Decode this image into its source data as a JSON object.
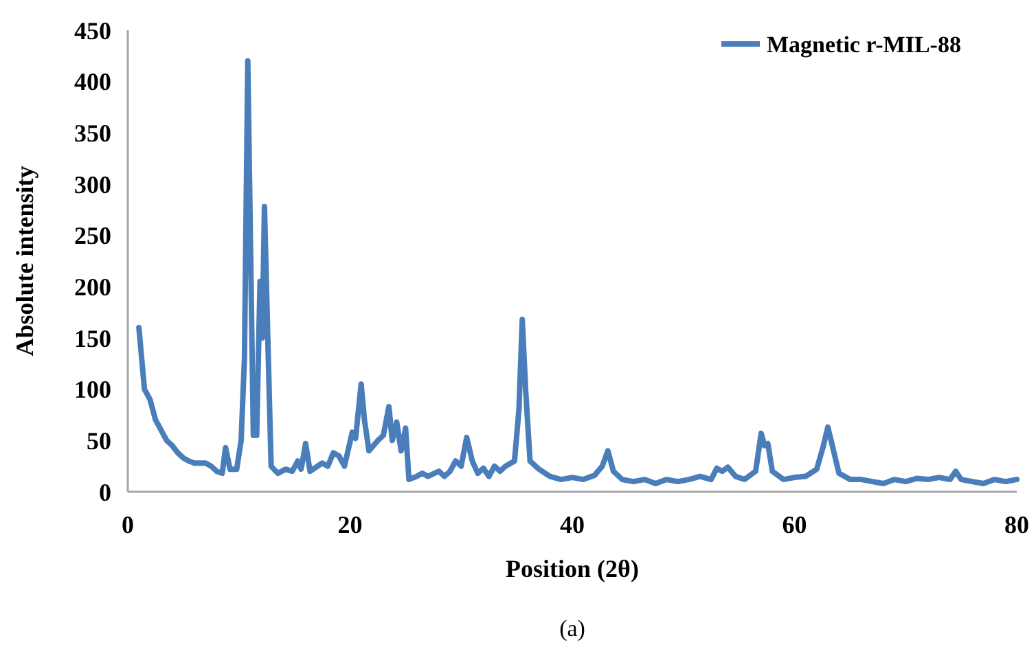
{
  "chart_data": {
    "type": "line",
    "xlabel": "Position (2θ)",
    "ylabel": "Absolute intensity",
    "annotations": [
      "(a)"
    ],
    "xlim": [
      0,
      80
    ],
    "xticks": [
      0,
      20,
      40,
      60,
      80
    ],
    "ylim": [
      0,
      450
    ],
    "yticks": [
      0,
      50,
      100,
      150,
      200,
      250,
      300,
      350,
      400,
      450
    ],
    "legend": "top right",
    "grid": false,
    "marker": "none",
    "series": [
      {
        "name": "Magnetic r-MIL-88",
        "color": "#4a7ebb",
        "x": [
          1,
          1.5,
          2,
          2.5,
          3,
          3.5,
          4,
          4.5,
          5,
          5.5,
          6,
          7,
          7.5,
          8,
          8.5,
          8.8,
          9.2,
          9.8,
          10.2,
          10.5,
          10.8,
          11.1,
          11.3,
          11.6,
          11.9,
          12.1,
          12.3,
          12.6,
          12.9,
          13.5,
          14.2,
          14.8,
          15.3,
          15.6,
          16,
          16.4,
          17.5,
          18,
          18.5,
          19,
          19.5,
          20.2,
          20.5,
          21,
          21.3,
          21.7,
          22.5,
          23,
          23.5,
          23.8,
          24.2,
          24.6,
          25,
          25.3,
          26,
          26.5,
          27,
          28,
          28.5,
          29,
          29.5,
          30,
          30.5,
          31,
          31.5,
          32,
          32.5,
          33,
          33.5,
          34,
          34.8,
          35.2,
          35.5,
          35.8,
          36.2,
          37,
          38,
          39,
          40,
          41,
          42,
          42.7,
          43.2,
          43.7,
          44.5,
          45.5,
          46.5,
          47.5,
          48.5,
          49.5,
          50.5,
          51.5,
          52.5,
          53,
          53.5,
          54,
          54.7,
          55.5,
          56.5,
          57,
          57.3,
          57.6,
          58,
          59,
          60,
          61,
          62,
          62.6,
          63,
          63.4,
          64,
          65,
          66,
          67,
          68,
          69,
          70,
          71,
          72,
          73,
          74,
          74.5,
          75,
          76,
          77,
          78,
          79,
          80
        ],
        "values": [
          160,
          100,
          90,
          70,
          60,
          50,
          45,
          38,
          33,
          30,
          28,
          28,
          25,
          20,
          18,
          43,
          22,
          22,
          50,
          130,
          420,
          200,
          55,
          55,
          205,
          150,
          278,
          150,
          25,
          18,
          22,
          20,
          30,
          22,
          47,
          20,
          28,
          25,
          38,
          35,
          25,
          58,
          52,
          105,
          70,
          40,
          50,
          55,
          83,
          50,
          68,
          40,
          62,
          12,
          15,
          18,
          15,
          20,
          15,
          20,
          30,
          25,
          53,
          30,
          18,
          23,
          15,
          25,
          20,
          25,
          30,
          80,
          168,
          100,
          30,
          22,
          15,
          12,
          14,
          12,
          16,
          25,
          40,
          20,
          12,
          10,
          12,
          8,
          12,
          10,
          12,
          15,
          12,
          23,
          20,
          24,
          15,
          12,
          20,
          57,
          45,
          47,
          20,
          12,
          14,
          15,
          22,
          45,
          63,
          45,
          18,
          12,
          12,
          10,
          8,
          12,
          10,
          13,
          12,
          14,
          12,
          20,
          12,
          10,
          8,
          12,
          10,
          12
        ]
      }
    ]
  }
}
